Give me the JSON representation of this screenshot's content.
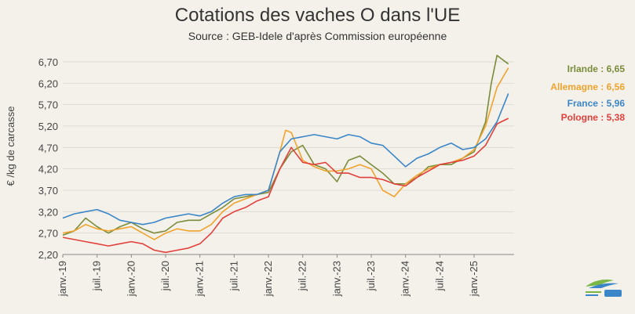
{
  "chart_data": {
    "type": "line",
    "title": "Cotations des vaches O dans l'UE",
    "subtitle": "Source : GEB-Idele d'après Commission européenne",
    "ylabel": "€ /kg de carcasse",
    "xlabel": "",
    "ylim": [
      2.2,
      6.9
    ],
    "y_ticks": [
      "2,20",
      "2,70",
      "3,20",
      "3,70",
      "4,20",
      "4,70",
      "5,20",
      "5,70",
      "6,20",
      "6,70"
    ],
    "x_ticks": [
      "janv.-19",
      "juil.-19",
      "janv.-20",
      "juil.-20",
      "janv.-21",
      "juil.-21",
      "janv.-22",
      "juil.-22",
      "janv.-23",
      "juil.-23",
      "janv.-24",
      "juil.-24",
      "janv.-25"
    ],
    "x_range": [
      "2019-01",
      "2025-08"
    ],
    "grid": true,
    "series": [
      {
        "name": "Irlande",
        "label": "Irlande : 6,65",
        "color": "#7a8c3a",
        "x": [
          "2019-01",
          "2019-03",
          "2019-05",
          "2019-07",
          "2019-09",
          "2019-11",
          "2020-01",
          "2020-03",
          "2020-05",
          "2020-07",
          "2020-09",
          "2020-11",
          "2021-01",
          "2021-03",
          "2021-05",
          "2021-07",
          "2021-09",
          "2021-11",
          "2022-01",
          "2022-03",
          "2022-05",
          "2022-07",
          "2022-09",
          "2022-11",
          "2023-01",
          "2023-03",
          "2023-05",
          "2023-07",
          "2023-09",
          "2023-11",
          "2024-01",
          "2024-03",
          "2024-05",
          "2024-07",
          "2024-09",
          "2024-11",
          "2025-01",
          "2025-03",
          "2025-04",
          "2025-05",
          "2025-06",
          "2025-07"
        ],
        "values": [
          2.65,
          2.75,
          3.05,
          2.85,
          2.7,
          2.85,
          2.95,
          2.8,
          2.7,
          2.75,
          2.95,
          3.0,
          3.0,
          3.15,
          3.3,
          3.5,
          3.55,
          3.6,
          3.65,
          4.2,
          4.6,
          4.75,
          4.3,
          4.2,
          3.9,
          4.4,
          4.5,
          4.3,
          4.1,
          3.85,
          3.85,
          4.0,
          4.25,
          4.3,
          4.3,
          4.45,
          4.6,
          5.3,
          6.2,
          6.85,
          6.75,
          6.65
        ]
      },
      {
        "name": "Allemagne",
        "label": "Allemagne : 6,56",
        "color": "#f0a32c",
        "x": [
          "2019-01",
          "2019-03",
          "2019-05",
          "2019-07",
          "2019-09",
          "2019-11",
          "2020-01",
          "2020-03",
          "2020-05",
          "2020-07",
          "2020-09",
          "2020-11",
          "2021-01",
          "2021-03",
          "2021-05",
          "2021-07",
          "2021-09",
          "2021-11",
          "2022-01",
          "2022-03",
          "2022-04",
          "2022-05",
          "2022-07",
          "2022-09",
          "2022-11",
          "2023-01",
          "2023-03",
          "2023-05",
          "2023-07",
          "2023-09",
          "2023-11",
          "2024-01",
          "2024-03",
          "2024-05",
          "2024-07",
          "2024-09",
          "2024-11",
          "2025-01",
          "2025-03",
          "2025-05",
          "2025-07"
        ],
        "values": [
          2.7,
          2.75,
          2.9,
          2.8,
          2.75,
          2.8,
          2.85,
          2.7,
          2.55,
          2.7,
          2.8,
          2.75,
          2.75,
          2.9,
          3.2,
          3.4,
          3.5,
          3.6,
          3.7,
          4.6,
          5.1,
          5.05,
          4.4,
          4.25,
          4.15,
          4.15,
          4.2,
          4.3,
          4.2,
          3.7,
          3.55,
          3.85,
          4.05,
          4.2,
          4.3,
          4.35,
          4.45,
          4.65,
          5.2,
          6.1,
          6.56
        ]
      },
      {
        "name": "France",
        "label": "France : 5,96",
        "color": "#3a86c8",
        "x": [
          "2019-01",
          "2019-03",
          "2019-05",
          "2019-07",
          "2019-09",
          "2019-11",
          "2020-01",
          "2020-03",
          "2020-05",
          "2020-07",
          "2020-09",
          "2020-11",
          "2021-01",
          "2021-03",
          "2021-05",
          "2021-07",
          "2021-09",
          "2021-11",
          "2022-01",
          "2022-03",
          "2022-05",
          "2022-07",
          "2022-09",
          "2022-11",
          "2023-01",
          "2023-03",
          "2023-05",
          "2023-07",
          "2023-09",
          "2023-11",
          "2024-01",
          "2024-03",
          "2024-05",
          "2024-07",
          "2024-09",
          "2024-11",
          "2025-01",
          "2025-03",
          "2025-05",
          "2025-07"
        ],
        "values": [
          3.05,
          3.15,
          3.2,
          3.25,
          3.15,
          3.0,
          2.95,
          2.9,
          2.95,
          3.05,
          3.1,
          3.15,
          3.1,
          3.2,
          3.4,
          3.55,
          3.6,
          3.6,
          3.7,
          4.6,
          4.9,
          4.95,
          5.0,
          4.95,
          4.9,
          5.0,
          4.95,
          4.8,
          4.75,
          4.5,
          4.25,
          4.45,
          4.55,
          4.7,
          4.8,
          4.65,
          4.7,
          4.9,
          5.3,
          5.96
        ]
      },
      {
        "name": "Pologne",
        "label": "Pologne : 5,38",
        "color": "#e2403c",
        "x": [
          "2019-01",
          "2019-03",
          "2019-05",
          "2019-07",
          "2019-09",
          "2019-11",
          "2020-01",
          "2020-03",
          "2020-05",
          "2020-07",
          "2020-09",
          "2020-11",
          "2021-01",
          "2021-03",
          "2021-05",
          "2021-07",
          "2021-09",
          "2021-11",
          "2022-01",
          "2022-03",
          "2022-05",
          "2022-07",
          "2022-09",
          "2022-11",
          "2023-01",
          "2023-03",
          "2023-05",
          "2023-07",
          "2023-09",
          "2023-11",
          "2024-01",
          "2024-03",
          "2024-05",
          "2024-07",
          "2024-09",
          "2024-11",
          "2025-01",
          "2025-03",
          "2025-05",
          "2025-07"
        ],
        "values": [
          2.6,
          2.55,
          2.5,
          2.45,
          2.4,
          2.45,
          2.5,
          2.45,
          2.3,
          2.25,
          2.3,
          2.35,
          2.45,
          2.7,
          3.05,
          3.2,
          3.3,
          3.45,
          3.55,
          4.2,
          4.7,
          4.35,
          4.3,
          4.35,
          4.1,
          4.1,
          4.0,
          4.0,
          3.95,
          3.85,
          3.8,
          4.0,
          4.15,
          4.3,
          4.35,
          4.4,
          4.5,
          4.75,
          5.25,
          5.38
        ]
      }
    ]
  }
}
